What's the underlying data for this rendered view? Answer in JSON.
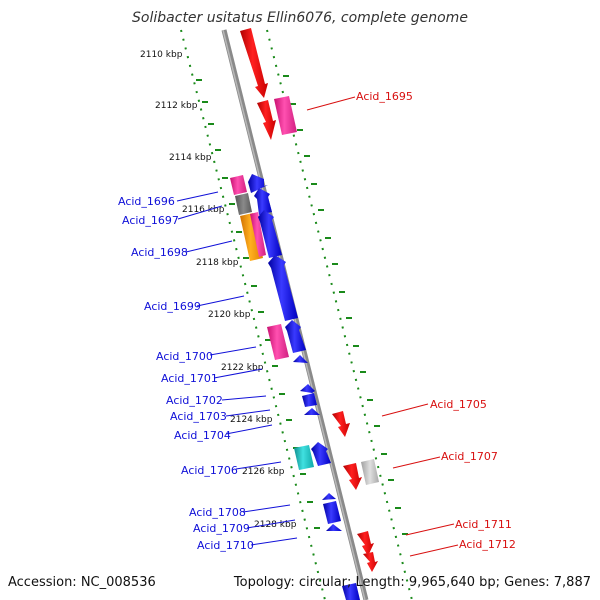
{
  "title": "Solibacter usitatus Ellin6076, complete genome",
  "accession": "Accession: NC_008536",
  "summary": "Topology: circular; Length: 9,965,640 bp; Genes: 7,887",
  "colors": {
    "backbone": "#8a8a8a",
    "scale_dots": "#1a8a1a",
    "forward_gene": "#1010e0",
    "reverse_gene": "#e01010",
    "label_forward": "#1010d8",
    "label_reverse": "#d81010",
    "pink": "#ff3aa0",
    "gray": "#777777",
    "orange": "#ff9a00",
    "cyan": "#20c8c8",
    "light_gray": "#c8c8c8"
  },
  "scale": {
    "unit": "kbp",
    "ticks": [
      "2110 kbp",
      "2112 kbp",
      "2114 kbp",
      "2116 kbp",
      "2118 kbp",
      "2120 kbp",
      "2122 kbp",
      "2124 kbp",
      "2126 kbp",
      "2128 kbp"
    ]
  },
  "genes_forward": [
    {
      "name": "Acid_1696",
      "color": "pink"
    },
    {
      "name": "Acid_1697",
      "color": "gray"
    },
    {
      "name": "Acid_1698",
      "color": "orange"
    },
    {
      "name": "Acid_1699",
      "color": "forward_gene"
    },
    {
      "name": "Acid_1700",
      "color": "pink"
    },
    {
      "name": "Acid_1701",
      "color": "forward_gene"
    },
    {
      "name": "Acid_1702",
      "color": "forward_gene"
    },
    {
      "name": "Acid_1703",
      "color": "forward_gene"
    },
    {
      "name": "Acid_1704",
      "color": "forward_gene"
    },
    {
      "name": "Acid_1706",
      "color": "cyan"
    },
    {
      "name": "Acid_1708",
      "color": "forward_gene"
    },
    {
      "name": "Acid_1709",
      "color": "forward_gene"
    },
    {
      "name": "Acid_1710",
      "color": "forward_gene"
    }
  ],
  "genes_reverse": [
    {
      "name": "Acid_1695",
      "color": "pink"
    },
    {
      "name": "Acid_1705",
      "color": "reverse_gene"
    },
    {
      "name": "Acid_1707",
      "color": "light_gray"
    },
    {
      "name": "Acid_1711",
      "color": "reverse_gene"
    },
    {
      "name": "Acid_1712",
      "color": "reverse_gene"
    }
  ]
}
